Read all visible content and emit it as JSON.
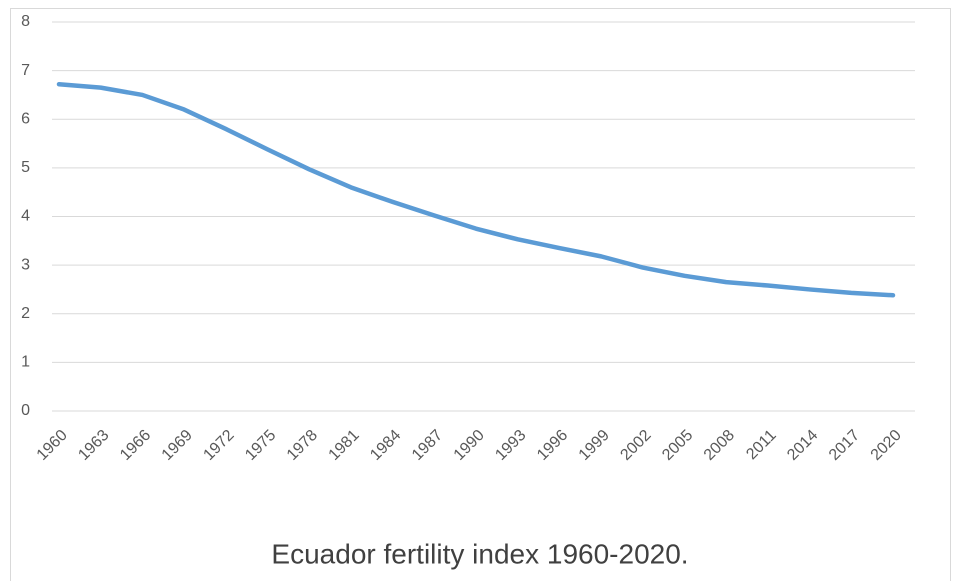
{
  "chart_data": {
    "type": "line",
    "title": "Ecuador fertility index 1960-2020.",
    "categories": [
      "1960",
      "1963",
      "1966",
      "1969",
      "1972",
      "1975",
      "1978",
      "1981",
      "1984",
      "1987",
      "1990",
      "1993",
      "1996",
      "1999",
      "2002",
      "2005",
      "2008",
      "2011",
      "2014",
      "2017",
      "2020"
    ],
    "series": [
      {
        "name": "Fertility index",
        "color": "#5b9bd5",
        "values": [
          6.72,
          6.65,
          6.5,
          6.2,
          5.8,
          5.38,
          4.97,
          4.6,
          4.3,
          4.02,
          3.75,
          3.53,
          3.35,
          3.18,
          2.95,
          2.78,
          2.65,
          2.58,
          2.5,
          2.43,
          2.38
        ]
      }
    ],
    "ylim": [
      0,
      8
    ],
    "yticks": [
      0,
      1,
      2,
      3,
      4,
      5,
      6,
      7,
      8
    ],
    "grid": true
  }
}
